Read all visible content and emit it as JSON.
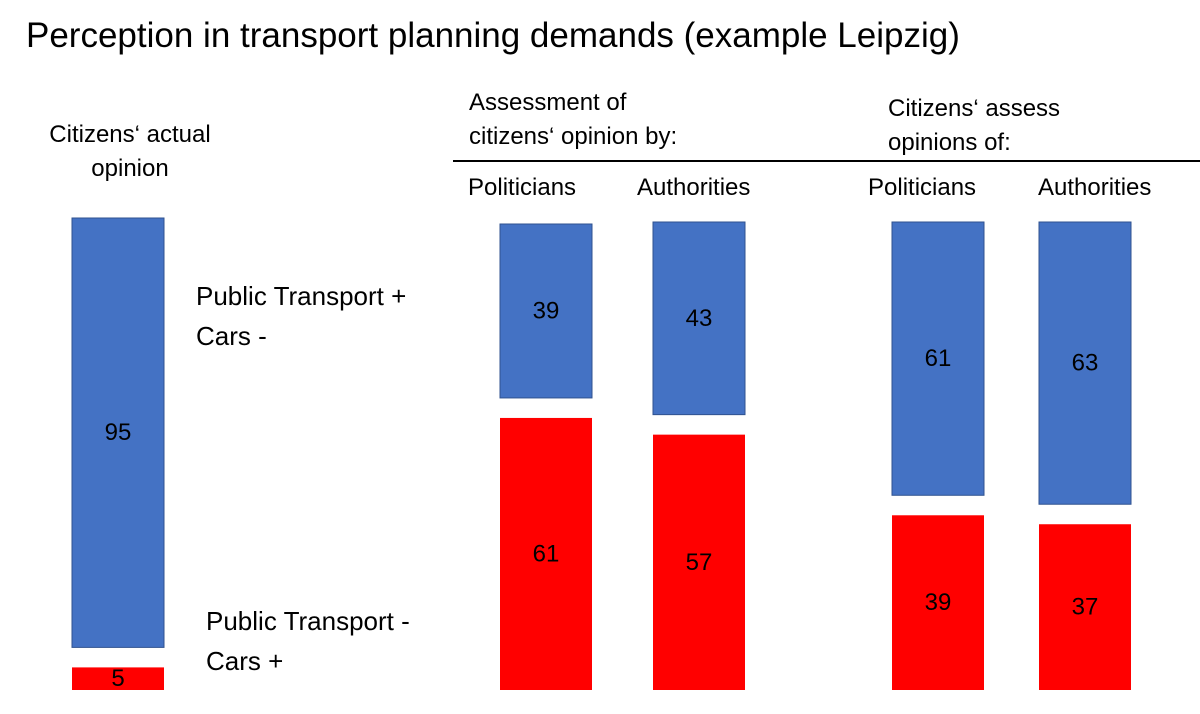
{
  "title": "Perception in transport planning demands (example Leipzig)",
  "groups": {
    "actual": [
      "Citizens‘ actual",
      "opinion"
    ],
    "assessment": [
      "Assessment of",
      "citizens‘ opinion by:"
    ],
    "citizens_assess": [
      "Citizens‘ assess",
      "opinions of:"
    ]
  },
  "legend": {
    "pt_plus": [
      "Public Transport  +",
      "Cars -"
    ],
    "pt_minus": [
      "Public Transport   -",
      "Cars +"
    ]
  },
  "colors": {
    "pt_plus": "#4472C4",
    "pt_minus": "#FF0000",
    "bar_border": "#2F528F"
  },
  "chart_data": {
    "type": "bar",
    "stacked": true,
    "categories": [
      "Citizens‘ actual opinion",
      "Politicians",
      "Authorities",
      "Politicians",
      "Authorities"
    ],
    "series": [
      {
        "name": "Public Transport  + Cars -",
        "values": [
          95,
          39,
          43,
          61,
          63
        ]
      },
      {
        "name": "Public Transport   - Cars +",
        "values": [
          5,
          61,
          57,
          39,
          37
        ]
      }
    ]
  }
}
